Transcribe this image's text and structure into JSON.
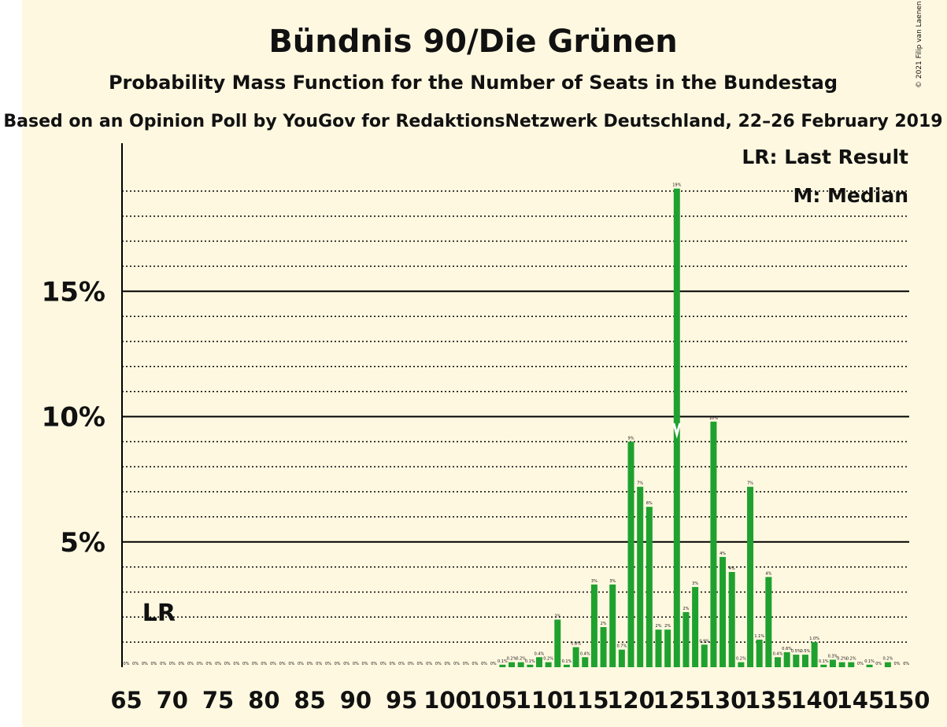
{
  "title": "Bündnis 90/Die Grünen",
  "subtitle": "Probability Mass Function for the Number of Seats in the Bundestag",
  "subtitle2": "Based on an Opinion Poll by YouGov for RedaktionsNetzwerk Deutschland, 22–26 February 2019",
  "copyright": "© 2021 Filip van Laenen",
  "legend": {
    "last_result": "LR: Last Result",
    "median": "M: Median"
  },
  "lr_marker": "LR",
  "colors": {
    "background": "#fff8e0",
    "bar": "#1fa12f",
    "axis": "#000000"
  },
  "chart_data": {
    "type": "bar",
    "xlabel": "",
    "ylabel": "",
    "xlim": [
      65,
      150
    ],
    "ylim": [
      0,
      20
    ],
    "x_ticks": [
      65,
      70,
      75,
      80,
      85,
      90,
      95,
      100,
      105,
      110,
      115,
      120,
      125,
      130,
      135,
      140,
      145,
      150
    ],
    "y_ticks": [
      {
        "value": 5,
        "label": "5%"
      },
      {
        "value": 10,
        "label": "10%"
      },
      {
        "value": 15,
        "label": "15%"
      }
    ],
    "minor_gridlines_every": 1,
    "last_result": 67,
    "median": 125,
    "seats": [
      65,
      66,
      67,
      68,
      69,
      70,
      71,
      72,
      73,
      74,
      75,
      76,
      77,
      78,
      79,
      80,
      81,
      82,
      83,
      84,
      85,
      86,
      87,
      88,
      89,
      90,
      91,
      92,
      93,
      94,
      95,
      96,
      97,
      98,
      99,
      100,
      101,
      102,
      103,
      104,
      105,
      106,
      107,
      108,
      109,
      110,
      111,
      112,
      113,
      114,
      115,
      116,
      117,
      118,
      119,
      120,
      121,
      122,
      123,
      124,
      125,
      126,
      127,
      128,
      129,
      130,
      131,
      132,
      133,
      134,
      135,
      136,
      137,
      138,
      139,
      140,
      141,
      142,
      143,
      144,
      145,
      146,
      147,
      148,
      149,
      150
    ],
    "values": [
      0,
      0,
      0,
      0,
      0,
      0,
      0,
      0,
      0,
      0,
      0,
      0,
      0,
      0,
      0,
      0,
      0,
      0,
      0,
      0,
      0,
      0,
      0,
      0,
      0,
      0,
      0,
      0,
      0,
      0,
      0,
      0,
      0,
      0,
      0,
      0,
      0,
      0,
      0,
      0,
      0,
      0.1,
      0.2,
      0.2,
      0.1,
      0.4,
      0.2,
      1.9,
      0.1,
      0.8,
      0.4,
      3.3,
      1.6,
      3.3,
      0.7,
      9.0,
      7.2,
      6.4,
      1.5,
      1.5,
      19.1,
      2.2,
      3.2,
      0.9,
      9.8,
      4.4,
      3.8,
      0.2,
      7.2,
      1.1,
      3.6,
      0.4,
      0.6,
      0.5,
      0.5,
      1.0,
      0.1,
      0.3,
      0.2,
      0.2,
      0,
      0.1,
      0,
      0.2,
      0,
      0
    ],
    "value_labels": [
      "0%",
      "0%",
      "0%",
      "0%",
      "0%",
      "0%",
      "0%",
      "0%",
      "0%",
      "0%",
      "0%",
      "0%",
      "0%",
      "0%",
      "0%",
      "0%",
      "0%",
      "0%",
      "0%",
      "0%",
      "0%",
      "0%",
      "0%",
      "0%",
      "0%",
      "0%",
      "0%",
      "0%",
      "0%",
      "0%",
      "0%",
      "0%",
      "0%",
      "0%",
      "0%",
      "0%",
      "0%",
      "0%",
      "0%",
      "0%",
      "0%",
      "0.1%",
      "0.2%",
      "0.2%",
      "0.1%",
      "0.4%",
      "0.2%",
      "2%",
      "0.1%",
      "0.8%",
      "0.4%",
      "3%",
      "2%",
      "3%",
      "0.7%",
      "9%",
      "7%",
      "6%",
      "2%",
      "2%",
      "19%",
      "2%",
      "3%",
      "0.9%",
      "10%",
      "4%",
      "4%",
      "0.2%",
      "7%",
      "1.1%",
      "4%",
      "0.4%",
      "0.6%",
      "0.5%",
      "0.5%",
      "1.0%",
      "0.1%",
      "0.3%",
      "0.2%",
      "0.2%",
      "0%",
      "0.1%",
      "0%",
      "0.2%",
      "0%",
      "0%"
    ]
  }
}
